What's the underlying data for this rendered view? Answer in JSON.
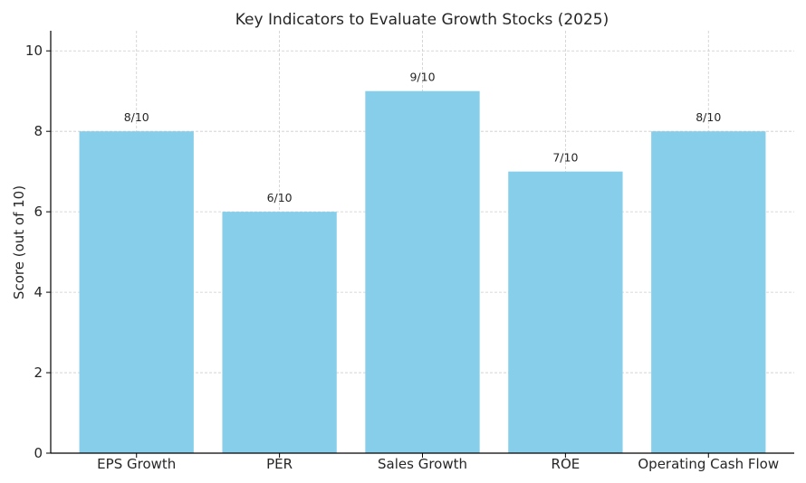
{
  "chart_data": {
    "type": "bar",
    "title": "Key Indicators to Evaluate Growth Stocks (2025)",
    "xlabel": "",
    "ylabel": "Score (out of 10)",
    "categories": [
      "EPS Growth",
      "PER",
      "Sales Growth",
      "ROE",
      "Operating Cash Flow"
    ],
    "values": [
      8,
      6,
      9,
      7,
      8
    ],
    "data_labels": [
      "8/10",
      "6/10",
      "9/10",
      "7/10",
      "8/10"
    ],
    "ylim": [
      0,
      10.5
    ],
    "yticks": [
      0,
      2,
      4,
      6,
      8,
      10
    ],
    "grid": true,
    "bar_color": "#87CEEB"
  }
}
